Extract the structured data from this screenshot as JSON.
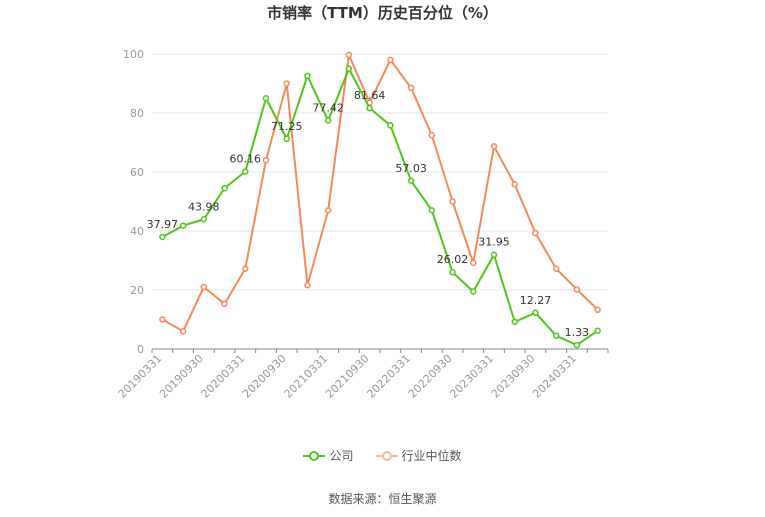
{
  "chart_data": {
    "type": "line",
    "title": "市销率（TTM）历史百分位（%）",
    "xlabel": "",
    "ylabel": "",
    "ylim": [
      0,
      100
    ],
    "yticks": [
      0,
      20,
      40,
      60,
      80,
      100
    ],
    "grid": true,
    "legend_position": "bottom",
    "x": [
      "20190331",
      "20190630",
      "20190930",
      "20191231",
      "20200331",
      "20200630",
      "20200930",
      "20201231",
      "20210331",
      "20210630",
      "20210930",
      "20211231",
      "20220331",
      "20220630",
      "20220930",
      "20221231",
      "20230331",
      "20230630",
      "20230930",
      "20231231",
      "20240331",
      "20240630"
    ],
    "xtick_labels": [
      "20190331",
      "20190930",
      "20200331",
      "20200930",
      "20210331",
      "20210930",
      "20220331",
      "20220930",
      "20230331",
      "20230930",
      "20240331"
    ],
    "series": [
      {
        "name": "公司",
        "color": "#52c41a",
        "values": [
          37.97,
          41.8,
          43.98,
          54.5,
          60.16,
          85.0,
          71.25,
          92.6,
          77.42,
          95.0,
          81.64,
          75.8,
          57.03,
          47.0,
          26.02,
          19.5,
          31.95,
          9.2,
          12.27,
          4.5,
          1.33,
          6.2
        ],
        "labels": {
          "0": "37.97",
          "2": "43.98",
          "4": "60.16",
          "6": "71.25",
          "8": "77.42",
          "10": "81.64",
          "12": "57.03",
          "14": "26.02",
          "16": "31.95",
          "18": "12.27",
          "20": "1.33"
        }
      },
      {
        "name": "行业中位数",
        "color": "#f5895b",
        "values": [
          10.0,
          6.0,
          21.0,
          15.3,
          27.2,
          64.0,
          90.0,
          21.6,
          47.0,
          99.7,
          83.5,
          98.0,
          88.5,
          72.5,
          50.0,
          29.2,
          68.7,
          55.8,
          39.3,
          27.2,
          20.2,
          13.3
        ]
      }
    ]
  },
  "source_text": "数据来源：恒生聚源"
}
